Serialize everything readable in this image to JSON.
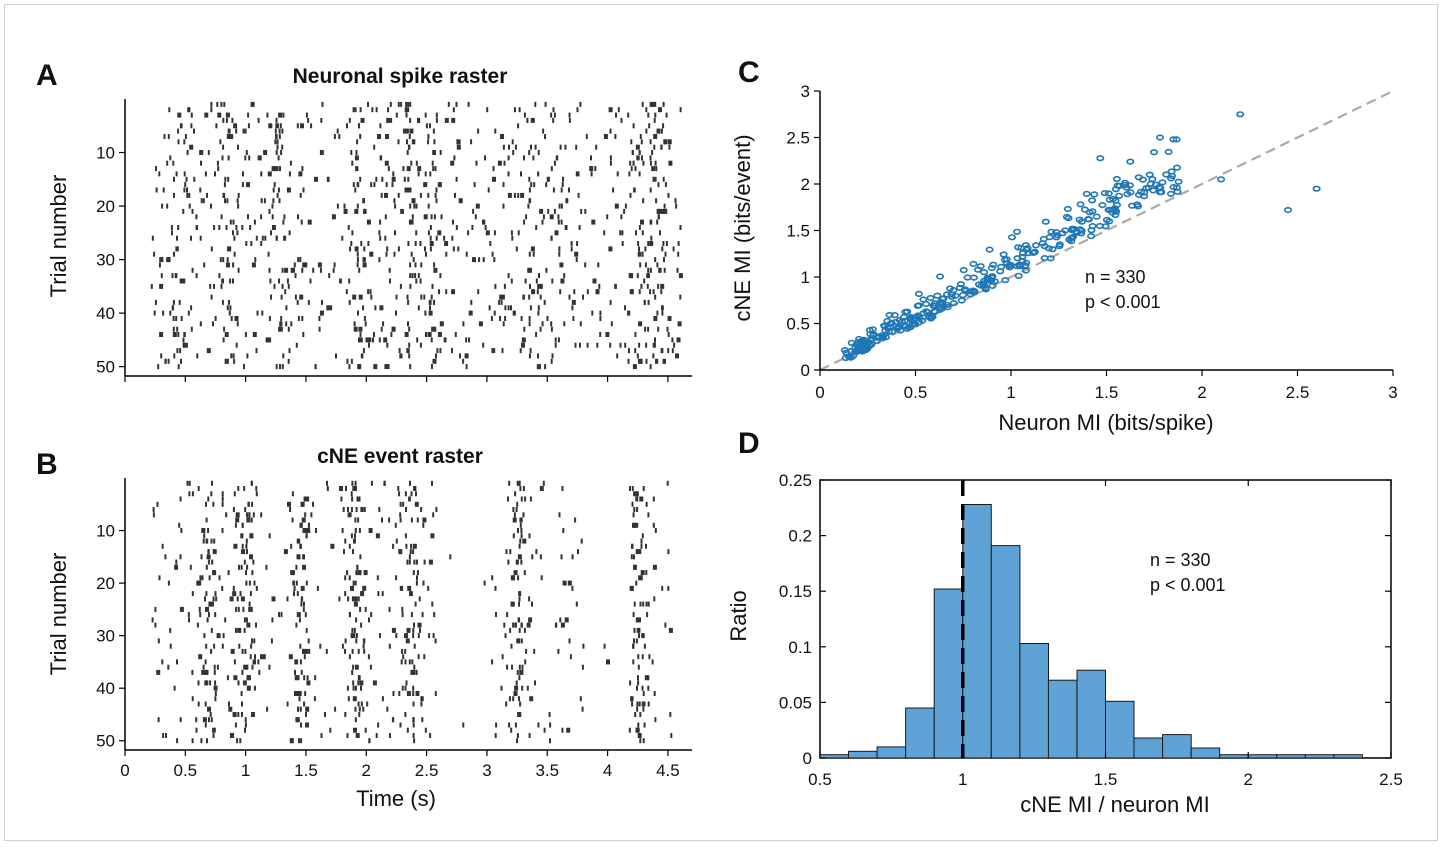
{
  "figure": {
    "panel_letters": [
      "A",
      "B",
      "C",
      "D"
    ]
  },
  "chart_data": [
    {
      "panel": "A",
      "type": "scatter",
      "title": "Neuronal spike raster",
      "xlabel": "",
      "ylabel": "Trial number",
      "xlim": [
        0,
        4.65
      ],
      "ylim": [
        0,
        51
      ],
      "y_reversed": true,
      "x_ticks": [
        0,
        0.5,
        1,
        1.5,
        2,
        2.5,
        3,
        3.5,
        4,
        4.5
      ],
      "x_tick_labels": [],
      "y_ticks": [
        10,
        20,
        30,
        40,
        50
      ],
      "y_tick_labels": [
        "10",
        "20",
        "30",
        "40",
        "50"
      ],
      "trials": 50,
      "event_count_estimate": 1100,
      "description": "raster of spike ticks per trial",
      "x_range_data": [
        0.2,
        4.6
      ],
      "dense_columns": [
        0.45,
        0.85,
        1.25,
        1.95,
        2.35,
        2.55,
        3.35,
        3.6,
        4.25,
        4.4
      ],
      "mark_color": "#333333"
    },
    {
      "panel": "B",
      "type": "scatter",
      "title": "cNE event raster",
      "xlabel": "Time (s)",
      "ylabel": "Trial number",
      "xlim": [
        0,
        4.65
      ],
      "ylim": [
        0,
        51
      ],
      "y_reversed": true,
      "x_ticks": [
        0,
        0.5,
        1,
        1.5,
        2,
        2.5,
        3,
        3.5,
        4,
        4.5
      ],
      "x_tick_labels": [
        "0",
        "0.5",
        "1",
        "1.5",
        "2",
        "2.5",
        "3",
        "3.5",
        "4",
        "4.5"
      ],
      "y_ticks": [
        10,
        20,
        30,
        40,
        50
      ],
      "y_tick_labels": [
        "10",
        "20",
        "30",
        "40",
        "50"
      ],
      "trials": 50,
      "dense_columns": [
        0.7,
        1.0,
        1.45,
        1.9,
        2.35,
        3.25,
        4.25
      ],
      "x_range_data": [
        0.2,
        4.55
      ],
      "gaps": [
        [
          2.6,
          3.0
        ],
        [
          3.8,
          4.15
        ]
      ],
      "mark_color": "#333333"
    },
    {
      "panel": "C",
      "type": "scatter",
      "title": "",
      "xlabel": "Neuron MI (bits/spike)",
      "ylabel": "cNE MI (bits/event)",
      "xlim": [
        0,
        3
      ],
      "ylim": [
        0,
        3
      ],
      "x_ticks": [
        0,
        0.5,
        1,
        1.5,
        2,
        2.5,
        3
      ],
      "x_tick_labels": [
        "0",
        "0.5",
        "1",
        "1.5",
        "2",
        "2.5",
        "3"
      ],
      "y_ticks": [
        0,
        0.5,
        1,
        1.5,
        2,
        2.5,
        3
      ],
      "y_tick_labels": [
        "0",
        "0.5",
        "1",
        "1.5",
        "2",
        "2.5",
        "3"
      ],
      "n_points": 330,
      "annotation": [
        "n = 330",
        "p < 0.001"
      ],
      "reference_line": "y = x",
      "marker_color": "#1f77b4",
      "highlight_points": [
        [
          2.2,
          2.75
        ],
        [
          2.6,
          1.95
        ],
        [
          2.45,
          1.72
        ],
        [
          2.1,
          2.05
        ],
        [
          1.85,
          2.48
        ],
        [
          1.78,
          2.5
        ]
      ]
    },
    {
      "panel": "D",
      "type": "bar",
      "title": "",
      "xlabel": "cNE MI / neuron MI",
      "ylabel": "Ratio",
      "xlim": [
        0.5,
        2.5
      ],
      "ylim": [
        0,
        0.25
      ],
      "x_ticks": [
        0.5,
        1,
        1.5,
        2,
        2.5
      ],
      "x_tick_labels": [
        "0.5",
        "1",
        "1.5",
        "2",
        "2.5"
      ],
      "y_ticks": [
        0,
        0.05,
        0.1,
        0.15,
        0.2,
        0.25
      ],
      "y_tick_labels": [
        "0",
        "0.05",
        "0.1",
        "0.15",
        "0.2",
        "0.25"
      ],
      "bin_width": 0.1,
      "bin_starts": [
        0.5,
        0.6,
        0.7,
        0.8,
        0.9,
        1.0,
        1.1,
        1.2,
        1.3,
        1.4,
        1.5,
        1.6,
        1.7,
        1.8,
        1.9,
        2.0,
        2.1,
        2.2,
        2.3
      ],
      "values": [
        0.003,
        0.006,
        0.01,
        0.045,
        0.152,
        0.228,
        0.191,
        0.103,
        0.07,
        0.079,
        0.051,
        0.018,
        0.021,
        0.009,
        0.003,
        0.003,
        0.003,
        0.003,
        0.003
      ],
      "bar_color": "#5fa3d6",
      "reference_line_x": 1,
      "annotation": [
        "n = 330",
        "p < 0.001"
      ]
    }
  ]
}
